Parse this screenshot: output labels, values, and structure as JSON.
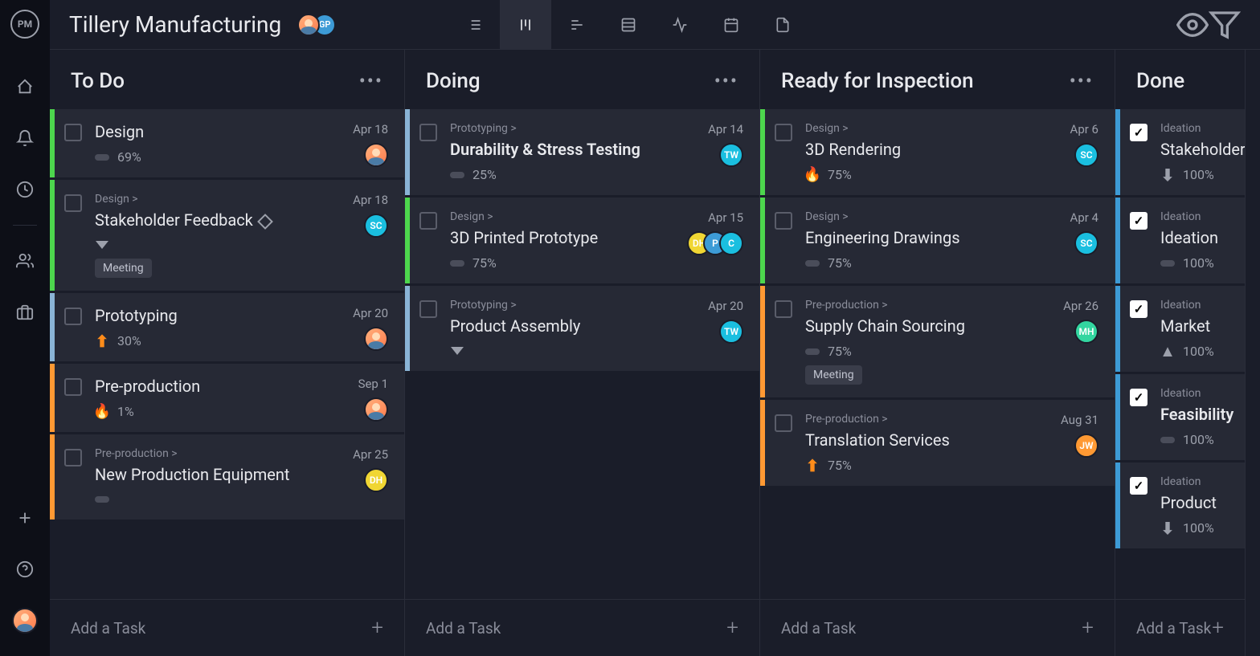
{
  "app_logo": "PM",
  "project_title": "Tillery Manufacturing",
  "header_avatars": [
    {
      "type": "img"
    },
    {
      "type": "text",
      "initials": "GP",
      "bg": "#3d9bd6"
    }
  ],
  "columns": [
    {
      "title": "To Do",
      "add_label": "Add a Task",
      "cards": [
        {
          "stripe": "#4dd64d",
          "title": "Design",
          "bold": false,
          "percent": "69%",
          "date": "Apr 18",
          "priority": "bar",
          "assignees": [
            {
              "type": "img"
            }
          ]
        },
        {
          "stripe": "#4dd64d",
          "crumb": "Design >",
          "title": "Stakeholder Feedback",
          "diamond": true,
          "date": "Apr 18",
          "priority": "chevron",
          "tag": "Meeting",
          "assignees": [
            {
              "type": "text",
              "initials": "SC",
              "bg": "#1abfe0"
            }
          ]
        },
        {
          "stripe": "#8ab4d6",
          "title": "Prototyping",
          "percent": "30%",
          "date": "Apr 20",
          "priority": "up",
          "assignees": [
            {
              "type": "img"
            }
          ]
        },
        {
          "stripe": "#ff9933",
          "title": "Pre-production",
          "percent": "1%",
          "date": "Sep 1",
          "priority": "flame",
          "assignees": [
            {
              "type": "img"
            }
          ]
        },
        {
          "stripe": "#ff9933",
          "crumb": "Pre-production >",
          "title": "New Production Equipment",
          "date": "Apr 25",
          "priority": "bar",
          "assignees": [
            {
              "type": "text",
              "initials": "DH",
              "bg": "#f0d633"
            }
          ]
        }
      ]
    },
    {
      "title": "Doing",
      "add_label": "Add a Task",
      "cards": [
        {
          "stripe": "#8ab4d6",
          "crumb": "Prototyping >",
          "title": "Durability & Stress Testing",
          "bold": true,
          "percent": "25%",
          "date": "Apr 14",
          "priority": "bar",
          "assignees": [
            {
              "type": "text",
              "initials": "TW",
              "bg": "#1abfe0"
            }
          ]
        },
        {
          "stripe": "#4dd64d",
          "crumb": "Design >",
          "title": "3D Printed Prototype",
          "percent": "75%",
          "date": "Apr 15",
          "priority": "bar",
          "assignees": [
            {
              "type": "text",
              "initials": "DH",
              "bg": "#f0d633"
            },
            {
              "type": "text",
              "initials": "P",
              "bg": "#3d9bd6"
            },
            {
              "type": "text",
              "initials": "C",
              "bg": "#1abfe0"
            }
          ]
        },
        {
          "stripe": "#8ab4d6",
          "crumb": "Prototyping >",
          "title": "Product Assembly",
          "date": "Apr 20",
          "priority": "chevron",
          "assignees": [
            {
              "type": "text",
              "initials": "TW",
              "bg": "#1abfe0"
            }
          ]
        }
      ]
    },
    {
      "title": "Ready for Inspection",
      "add_label": "Add a Task",
      "cards": [
        {
          "stripe": "#4dd64d",
          "crumb": "Design >",
          "title": "3D Rendering",
          "percent": "75%",
          "date": "Apr 6",
          "priority": "flame",
          "assignees": [
            {
              "type": "text",
              "initials": "SC",
              "bg": "#1abfe0"
            }
          ]
        },
        {
          "stripe": "#4dd64d",
          "crumb": "Design >",
          "title": "Engineering Drawings",
          "percent": "75%",
          "date": "Apr 4",
          "priority": "bar",
          "assignees": [
            {
              "type": "text",
              "initials": "SC",
              "bg": "#1abfe0"
            }
          ]
        },
        {
          "stripe": "#ff9933",
          "crumb": "Pre-production >",
          "title": "Supply Chain Sourcing",
          "percent": "75%",
          "date": "Apr 26",
          "priority": "bar",
          "tag": "Meeting",
          "assignees": [
            {
              "type": "text",
              "initials": "MH",
              "bg": "#33d6a0"
            }
          ]
        },
        {
          "stripe": "#ff9933",
          "crumb": "Pre-production >",
          "title": "Translation Services",
          "percent": "75%",
          "date": "Aug 31",
          "priority": "up",
          "assignees": [
            {
              "type": "text",
              "initials": "JW",
              "bg": "#ff9933"
            }
          ]
        }
      ]
    },
    {
      "title": "Done",
      "narrow": true,
      "add_label": "Add a Task",
      "cards": [
        {
          "stripe": "#3d9bd6",
          "crumb": "Ideation",
          "title": "Stakeholder",
          "done": true,
          "percent": "100%",
          "priority": "down"
        },
        {
          "stripe": "#3d9bd6",
          "crumb": "Ideation",
          "title": "Ideation",
          "done": true,
          "percent": "100%",
          "priority": "bar"
        },
        {
          "stripe": "#3d9bd6",
          "crumb": "Ideation",
          "title": "Market",
          "done": true,
          "percent": "100%",
          "priority": "upgray"
        },
        {
          "stripe": "#3d9bd6",
          "crumb": "Ideation",
          "title": "Feasibility",
          "bold": true,
          "done": true,
          "percent": "100%",
          "priority": "bar"
        },
        {
          "stripe": "#3d9bd6",
          "crumb": "Ideation",
          "title": "Product",
          "done": true,
          "percent": "100%",
          "priority": "down"
        }
      ]
    }
  ]
}
